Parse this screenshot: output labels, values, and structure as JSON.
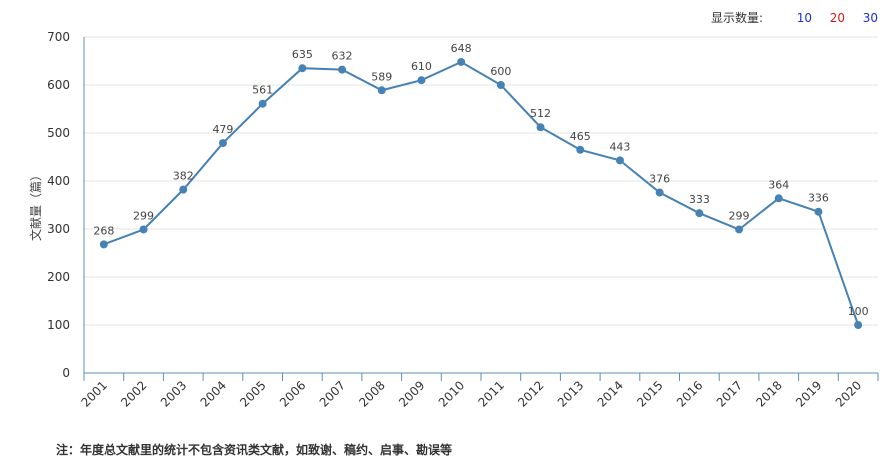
{
  "controls": {
    "display_count_label": "显示数量:",
    "options": [
      {
        "label": "10",
        "color": "#1a2fd6"
      },
      {
        "label": "20",
        "color": "#d61a1a"
      },
      {
        "label": "30",
        "color": "#1a2fd6"
      }
    ]
  },
  "footnote": "注：年度总文献里的统计不包含资讯类文献，如致谢、稿约、启事、勘误等",
  "chart_data": {
    "type": "line",
    "ylabel": "文献量（篇）",
    "xlabel": "",
    "ylim": [
      0,
      700
    ],
    "yticks": [
      0,
      100,
      200,
      300,
      400,
      500,
      600,
      700
    ],
    "x": [
      "2001",
      "2002",
      "2003",
      "2004",
      "2005",
      "2006",
      "2007",
      "2008",
      "2009",
      "2010",
      "2011",
      "2012",
      "2013",
      "2014",
      "2015",
      "2016",
      "2017",
      "2018",
      "2019",
      "2020"
    ],
    "series": [
      {
        "values": [
          268,
          299,
          382,
          479,
          561,
          635,
          632,
          589,
          610,
          648,
          600,
          512,
          465,
          443,
          376,
          333,
          299,
          364,
          336,
          100
        ],
        "color": "#4682b4"
      }
    ],
    "grid": true,
    "data_labels": true
  }
}
